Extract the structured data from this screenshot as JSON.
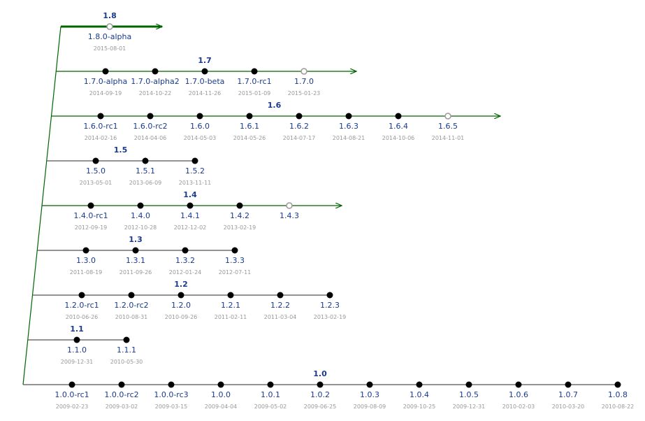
{
  "colors": {
    "active_line": "#006400",
    "inactive_line": "#555555",
    "released_dot": "#000000",
    "planned_dot_fill": "#ffffff",
    "planned_dot_stroke": "#999999",
    "label": "#1a3a8f",
    "date": "#999999"
  },
  "branches": [
    {
      "name": "1.8",
      "active": true,
      "arrow": true,
      "label_index": 0,
      "releases": [
        {
          "version": "1.8.0-alpha",
          "date": "2015-08-01",
          "planned": true
        }
      ]
    },
    {
      "name": "1.7",
      "active": true,
      "arrow": true,
      "label_index": 2,
      "releases": [
        {
          "version": "1.7.0-alpha",
          "date": "2014-09-19",
          "planned": false
        },
        {
          "version": "1.7.0-alpha2",
          "date": "2014-10-22",
          "planned": false
        },
        {
          "version": "1.7.0-beta",
          "date": "2014-11-26",
          "planned": false
        },
        {
          "version": "1.7.0-rc1",
          "date": "2015-01-09",
          "planned": false
        },
        {
          "version": "1.7.0",
          "date": "2015-01-23",
          "planned": true
        }
      ]
    },
    {
      "name": "1.6",
      "active": true,
      "arrow": true,
      "label_index": 3.5,
      "releases": [
        {
          "version": "1.6.0-rc1",
          "date": "2014-02-16",
          "planned": false
        },
        {
          "version": "1.6.0-rc2",
          "date": "2014-04-06",
          "planned": false
        },
        {
          "version": "1.6.0",
          "date": "2014-05-03",
          "planned": false
        },
        {
          "version": "1.6.1",
          "date": "2014-05-26",
          "planned": false
        },
        {
          "version": "1.6.2",
          "date": "2014-07-17",
          "planned": false
        },
        {
          "version": "1.6.3",
          "date": "2014-08-21",
          "planned": false
        },
        {
          "version": "1.6.4",
          "date": "2014-10-06",
          "planned": false
        },
        {
          "version": "1.6.5",
          "date": "2014-11-01",
          "planned": true
        }
      ]
    },
    {
      "name": "1.5",
      "active": false,
      "arrow": false,
      "label_index": 0.5,
      "releases": [
        {
          "version": "1.5.0",
          "date": "2013-05-01",
          "planned": false
        },
        {
          "version": "1.5.1",
          "date": "2013-06-09",
          "planned": false
        },
        {
          "version": "1.5.2",
          "date": "2013-11-11",
          "planned": false
        }
      ]
    },
    {
      "name": "1.4",
      "active": true,
      "arrow": true,
      "label_index": 2,
      "releases": [
        {
          "version": "1.4.0-rc1",
          "date": "2012-09-19",
          "planned": false
        },
        {
          "version": "1.4.0",
          "date": "2012-10-28",
          "planned": false
        },
        {
          "version": "1.4.1",
          "date": "2012-12-02",
          "planned": false
        },
        {
          "version": "1.4.2",
          "date": "2013-02-19",
          "planned": false
        },
        {
          "version": "1.4.3",
          "date": "",
          "planned": true
        }
      ]
    },
    {
      "name": "1.3",
      "active": false,
      "arrow": false,
      "label_index": 1,
      "releases": [
        {
          "version": "1.3.0",
          "date": "2011-08-19",
          "planned": false
        },
        {
          "version": "1.3.1",
          "date": "2011-09-26",
          "planned": false
        },
        {
          "version": "1.3.2",
          "date": "2012-01-24",
          "planned": false
        },
        {
          "version": "1.3.3",
          "date": "2012-07-11",
          "planned": false
        }
      ]
    },
    {
      "name": "1.2",
      "active": false,
      "arrow": false,
      "label_index": 2,
      "releases": [
        {
          "version": "1.2.0-rc1",
          "date": "2010-06-26",
          "planned": false
        },
        {
          "version": "1.2.0-rc2",
          "date": "2010-08-31",
          "planned": false
        },
        {
          "version": "1.2.0",
          "date": "2010-09-26",
          "planned": false
        },
        {
          "version": "1.2.1",
          "date": "2011-02-11",
          "planned": false
        },
        {
          "version": "1.2.2",
          "date": "2011-03-04",
          "planned": false
        },
        {
          "version": "1.2.3",
          "date": "2013-02-19",
          "planned": false
        }
      ]
    },
    {
      "name": "1.1",
      "active": false,
      "arrow": false,
      "label_index": 0,
      "releases": [
        {
          "version": "1.1.0",
          "date": "2009-12-31",
          "planned": false
        },
        {
          "version": "1.1.1",
          "date": "2010-05-30",
          "planned": false
        }
      ]
    },
    {
      "name": "1.0",
      "active": false,
      "arrow": false,
      "label_index": 5,
      "releases": [
        {
          "version": "1.0.0-rc1",
          "date": "2009-02-23",
          "planned": false
        },
        {
          "version": "1.0.0-rc2",
          "date": "2009-03-02",
          "planned": false
        },
        {
          "version": "1.0.0-rc3",
          "date": "2009-03-15",
          "planned": false
        },
        {
          "version": "1.0.0",
          "date": "2009-04-04",
          "planned": false
        },
        {
          "version": "1.0.1",
          "date": "2009-05-02",
          "planned": false
        },
        {
          "version": "1.0.2",
          "date": "2009-06-25",
          "planned": false
        },
        {
          "version": "1.0.3",
          "date": "2009-08-09",
          "planned": false
        },
        {
          "version": "1.0.4",
          "date": "2009-10-25",
          "planned": false
        },
        {
          "version": "1.0.5",
          "date": "2009-12-31",
          "planned": false
        },
        {
          "version": "1.0.6",
          "date": "2010-02-03",
          "planned": false
        },
        {
          "version": "1.0.7",
          "date": "2010-03-20",
          "planned": false
        },
        {
          "version": "1.0.8",
          "date": "2010-08-22",
          "planned": false
        }
      ]
    }
  ]
}
